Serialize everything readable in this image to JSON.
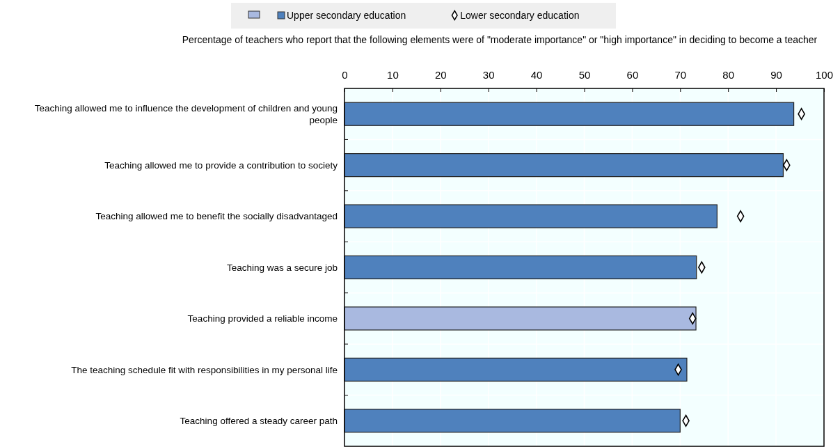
{
  "chart_data": {
    "type": "bar",
    "orientation": "horizontal",
    "xlabel": "Percentage of teachers who report that the following elements were of \"moderate importance\" or \"high importance\" in deciding to become a teacher",
    "categories": [
      "Teaching allowed me to influence the development of children and young people",
      "Teaching allowed me to provide a contribution to society",
      "Teaching allowed me to benefit the socially disadvantaged",
      "Teaching was a secure job",
      "Teaching provided a reliable income",
      "The teaching schedule fit with responsibilities in my personal life",
      "Teaching offered a steady career path"
    ],
    "series": [
      {
        "name": "Upper secondary education",
        "color": "#4f81bd",
        "colors": [
          "#4f81bd",
          "#4f81bd",
          "#4f81bd",
          "#4f81bd",
          "#a9b9e0",
          "#4f81bd",
          "#4f81bd"
        ],
        "values": [
          93.7,
          91.5,
          77.7,
          73.4,
          73.3,
          71.4,
          70.0
        ]
      },
      {
        "name": "Lower secondary education",
        "type": "scatter",
        "marker": "diamond",
        "color": "#ffffff",
        "values": [
          95.3,
          92.2,
          82.6,
          74.5,
          72.6,
          69.6,
          71.2
        ]
      }
    ],
    "xlim": [
      0,
      100
    ],
    "xticks": [
      0,
      10,
      20,
      30,
      40,
      50,
      60,
      70,
      80,
      90,
      100
    ],
    "grid": true,
    "legend": "top"
  }
}
